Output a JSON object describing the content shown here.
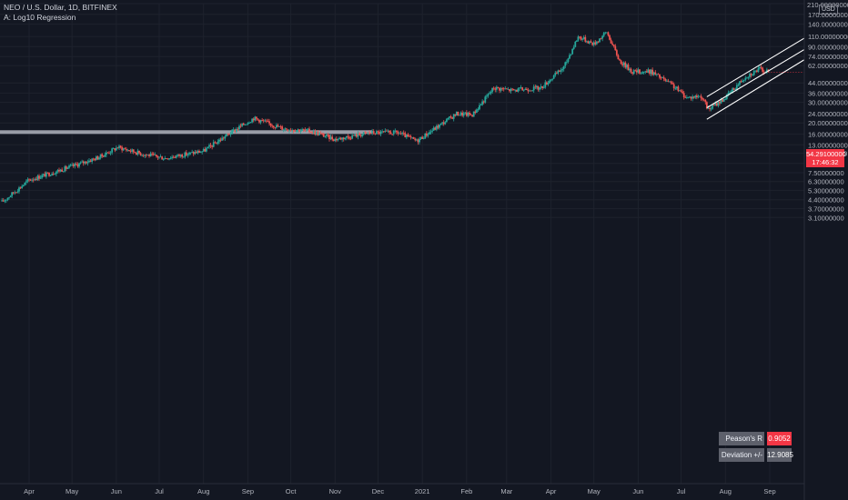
{
  "header": {
    "symbol_line": "NEO / U.S. Dollar, 1D, BITFINEX",
    "indicator_line": "A: Log10 Regression"
  },
  "currency_badge": "USD",
  "price_tag": {
    "value": "54.29100000",
    "countdown": "17:46:32",
    "color": "#f23645"
  },
  "stats": {
    "pearson_label": "Peason's R",
    "pearson_value": "0.9052",
    "deviation_label": "Deviation +/-",
    "deviation_value": "12.9085"
  },
  "colors": {
    "background": "#131722",
    "up": "#26a69a",
    "down": "#ef5350",
    "channel": "#ffffff",
    "hline": "#b2b5be"
  },
  "chart_data": {
    "type": "candlestick",
    "scale": "log",
    "y_ticks": [
      "210.00000000",
      "170.00000000",
      "140.00000000",
      "110.00000000",
      "90.00000000",
      "74.00000000",
      "62.00000000",
      "44.00000000",
      "36.00000000",
      "30.00000000",
      "24.00000000",
      "20.00000000",
      "16.00000000",
      "13.00000000",
      "11.00000000",
      "9.00000000",
      "7.50000000",
      "6.30000000",
      "5.30000000",
      "4.40000000",
      "3.70000000",
      "3.10000000"
    ],
    "y_tick_values": [
      210,
      170,
      140,
      110,
      90,
      74,
      62,
      44,
      36,
      30,
      24,
      20,
      16,
      13,
      11,
      9,
      7.5,
      6.3,
      5.3,
      4.4,
      3.7,
      3.1
    ],
    "x_ticks": [
      "Apr",
      "May",
      "Jun",
      "Jul",
      "Aug",
      "Sep",
      "Oct",
      "Nov",
      "Dec",
      "2021",
      "Feb",
      "Mar",
      "Apr",
      "May",
      "Jun",
      "Jul",
      "Aug",
      "Sep"
    ],
    "x_tick_dates": [
      "2020-04-01",
      "2020-05-01",
      "2020-06-01",
      "2020-07-01",
      "2020-08-01",
      "2020-09-01",
      "2020-10-01",
      "2020-11-01",
      "2020-12-01",
      "2021-01-01",
      "2021-02-01",
      "2021-03-01",
      "2021-04-01",
      "2021-05-01",
      "2021-06-01",
      "2021-07-01",
      "2021-08-01",
      "2021-09-01"
    ],
    "approx_close_path": [
      {
        "date": "2020-03-13",
        "close": 4.2
      },
      {
        "date": "2020-04-01",
        "close": 6.5
      },
      {
        "date": "2020-05-01",
        "close": 8.5
      },
      {
        "date": "2020-05-20",
        "close": 10.2
      },
      {
        "date": "2020-06-02",
        "close": 12.4
      },
      {
        "date": "2020-06-20",
        "close": 10.8
      },
      {
        "date": "2020-07-05",
        "close": 10.0
      },
      {
        "date": "2020-08-01",
        "close": 11.5
      },
      {
        "date": "2020-08-20",
        "close": 16.5
      },
      {
        "date": "2020-09-05",
        "close": 22.0
      },
      {
        "date": "2020-09-25",
        "close": 18.0
      },
      {
        "date": "2020-10-15",
        "close": 17.0
      },
      {
        "date": "2020-11-01",
        "close": 14.5
      },
      {
        "date": "2020-11-25",
        "close": 16.5
      },
      {
        "date": "2020-12-15",
        "close": 16.5
      },
      {
        "date": "2020-12-28",
        "close": 14.0
      },
      {
        "date": "2021-01-10",
        "close": 18.0
      },
      {
        "date": "2021-01-25",
        "close": 24.0
      },
      {
        "date": "2021-02-05",
        "close": 23.5
      },
      {
        "date": "2021-02-20",
        "close": 40.0
      },
      {
        "date": "2021-03-05",
        "close": 38.0
      },
      {
        "date": "2021-03-25",
        "close": 40.0
      },
      {
        "date": "2021-04-10",
        "close": 60.0
      },
      {
        "date": "2021-04-20",
        "close": 110.0
      },
      {
        "date": "2021-05-01",
        "close": 95.0
      },
      {
        "date": "2021-05-10",
        "close": 120.0
      },
      {
        "date": "2021-05-19",
        "close": 68.0
      },
      {
        "date": "2021-05-28",
        "close": 55.0
      },
      {
        "date": "2021-06-10",
        "close": 55.0
      },
      {
        "date": "2021-06-25",
        "close": 42.0
      },
      {
        "date": "2021-07-05",
        "close": 33.0
      },
      {
        "date": "2021-07-15",
        "close": 34.0
      },
      {
        "date": "2021-07-20",
        "close": 26.0
      },
      {
        "date": "2021-08-01",
        "close": 33.0
      },
      {
        "date": "2021-08-15",
        "close": 50.0
      },
      {
        "date": "2021-08-25",
        "close": 58.0
      },
      {
        "date": "2021-08-31",
        "close": 54.291
      }
    ],
    "horizontal_level": 16.7,
    "regression_channel": {
      "start_date": "2021-07-19",
      "end_date": "2021-09-03",
      "lines": [
        {
          "name": "upper",
          "start": 33.5,
          "end": 110.0
        },
        {
          "name": "middle",
          "start": 27.0,
          "end": 88.0
        },
        {
          "name": "lower",
          "start": 21.5,
          "end": 72.0
        }
      ]
    }
  }
}
